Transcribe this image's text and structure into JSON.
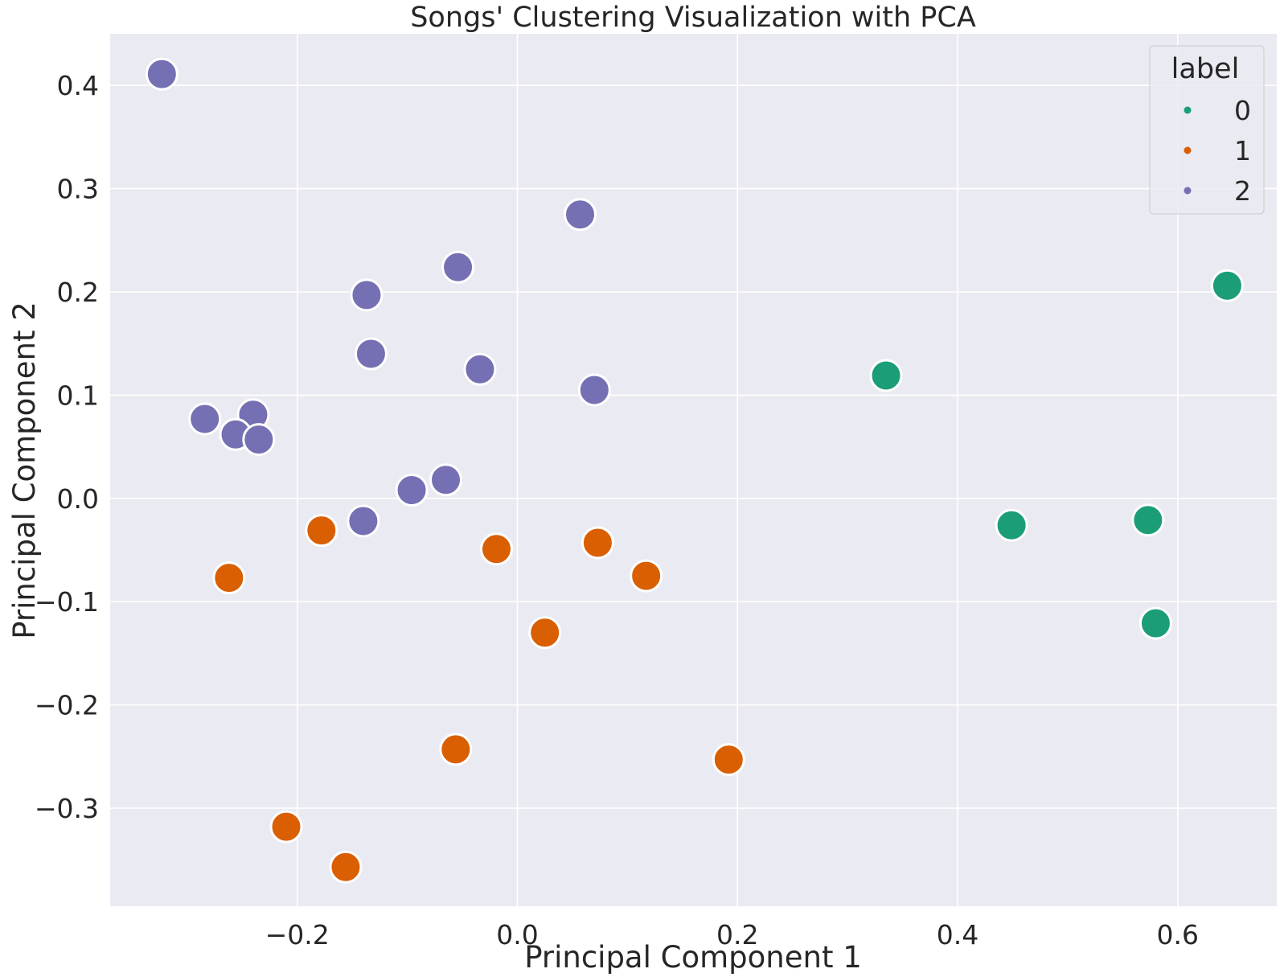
{
  "chart_data": {
    "type": "scatter",
    "title": "Songs' Clustering Visualization with PCA",
    "xlabel": "Principal Component 1",
    "ylabel": "Principal Component 2",
    "xlim": [
      -0.37,
      0.69
    ],
    "ylim": [
      -0.395,
      0.45
    ],
    "xticks": [
      -0.2,
      0.0,
      0.2,
      0.4,
      0.6
    ],
    "xtick_labels": [
      "−0.2",
      "0.0",
      "0.2",
      "0.4",
      "0.6"
    ],
    "yticks": [
      -0.3,
      -0.2,
      -0.1,
      0.0,
      0.1,
      0.2,
      0.3,
      0.4
    ],
    "ytick_labels": [
      "−0.3",
      "−0.2",
      "−0.1",
      "0.0",
      "0.1",
      "0.2",
      "0.3",
      "0.4"
    ],
    "grid": true,
    "background": "#eaeaf2",
    "legend": {
      "title": "label",
      "placement": "top-right",
      "entries": [
        "0",
        "1",
        "2"
      ]
    },
    "series": [
      {
        "name": "0",
        "color": "#1b9e77",
        "points": [
          [
            0.335,
            0.119
          ],
          [
            0.449,
            -0.026
          ],
          [
            0.573,
            -0.021
          ],
          [
            0.58,
            -0.121
          ],
          [
            0.645,
            0.206
          ]
        ]
      },
      {
        "name": "1",
        "color": "#d95f02",
        "points": [
          [
            -0.262,
            -0.077
          ],
          [
            -0.178,
            -0.031
          ],
          [
            -0.019,
            -0.049
          ],
          [
            0.025,
            -0.13
          ],
          [
            0.073,
            -0.043
          ],
          [
            0.117,
            -0.075
          ],
          [
            -0.056,
            -0.243
          ],
          [
            0.192,
            -0.253
          ],
          [
            -0.21,
            -0.318
          ],
          [
            -0.156,
            -0.357
          ]
        ]
      },
      {
        "name": "2",
        "color": "#7570b3",
        "points": [
          [
            -0.323,
            0.411
          ],
          [
            0.057,
            0.275
          ],
          [
            -0.054,
            0.224
          ],
          [
            -0.137,
            0.197
          ],
          [
            -0.133,
            0.14
          ],
          [
            -0.034,
            0.125
          ],
          [
            0.07,
            0.105
          ],
          [
            -0.284,
            0.077
          ],
          [
            -0.24,
            0.081
          ],
          [
            -0.256,
            0.062
          ],
          [
            -0.235,
            0.057
          ],
          [
            -0.065,
            0.018
          ],
          [
            -0.096,
            0.008
          ],
          [
            -0.14,
            -0.022
          ]
        ]
      }
    ]
  }
}
